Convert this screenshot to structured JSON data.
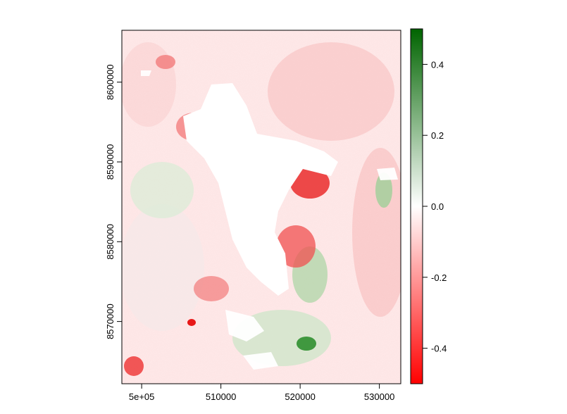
{
  "map": {
    "type": "raster",
    "x_axis": {
      "ticks": [
        500000,
        510000,
        520000,
        530000
      ],
      "tick_labels": [
        "5e+05",
        "510000",
        "520000",
        "530000"
      ],
      "range": [
        497500,
        532700
      ]
    },
    "y_axis": {
      "ticks": [
        8570000,
        8580000,
        8590000,
        8600000
      ],
      "tick_labels": [
        "8570000",
        "8580000",
        "8590000",
        "8600000"
      ],
      "range": [
        8562200,
        8606500
      ]
    },
    "legend": {
      "placement": "right",
      "ticks": [
        0.4,
        0.2,
        0.0,
        -0.2,
        -0.4
      ],
      "tick_labels": [
        "0.4",
        "0.2",
        "0.0",
        "-0.2",
        "-0.4"
      ],
      "range": [
        -0.5,
        0.5
      ],
      "colors": {
        "low": "#ff0000",
        "mid": "#ffffff",
        "high": "#006400"
      }
    }
  }
}
